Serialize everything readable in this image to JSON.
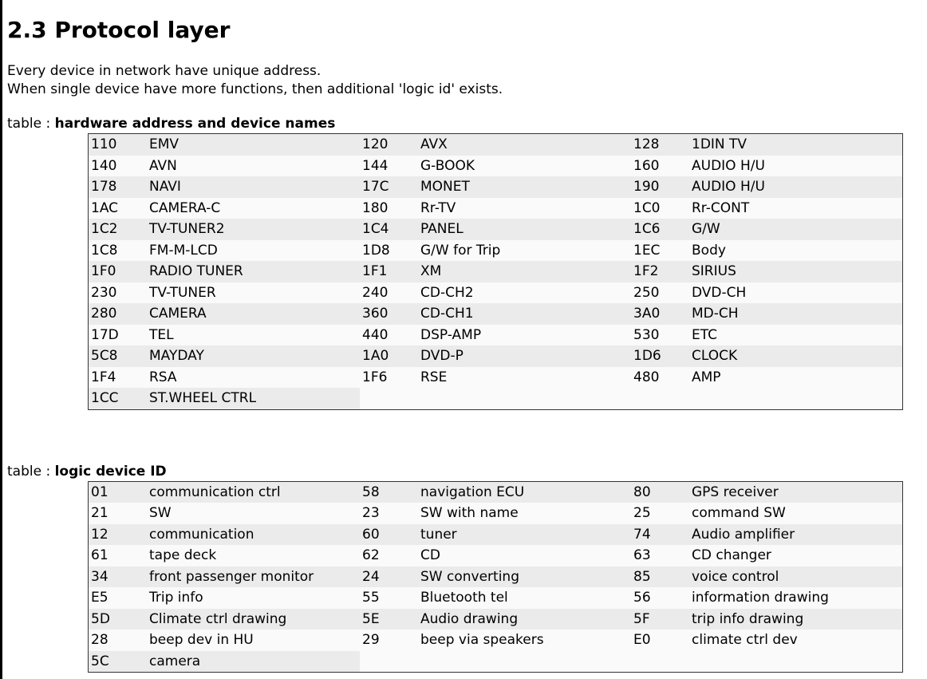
{
  "heading": "2.3 Protocol layer",
  "paragraphs": [
    "Every device in network have unique address.",
    "When single device have more functions, then additional 'logic id' exists."
  ],
  "tables": [
    {
      "label": "table :",
      "title": "hardware address and device names",
      "rows": [
        [
          "110",
          "EMV",
          "120",
          "AVX",
          "128",
          "1DIN TV"
        ],
        [
          "140",
          "AVN",
          "144",
          "G-BOOK",
          "160",
          "AUDIO H/U"
        ],
        [
          "178",
          "NAVI",
          "17C",
          "MONET",
          "190",
          "AUDIO H/U"
        ],
        [
          "1AC",
          "CAMERA-C",
          "180",
          "Rr-TV",
          "1C0",
          "Rr-CONT"
        ],
        [
          "1C2",
          "TV-TUNER2",
          "1C4",
          "PANEL",
          "1C6",
          "G/W"
        ],
        [
          "1C8",
          "FM-M-LCD",
          "1D8",
          "G/W for Trip",
          "1EC",
          "Body"
        ],
        [
          "1F0",
          "RADIO TUNER",
          "1F1",
          "XM",
          "1F2",
          "SIRIUS"
        ],
        [
          "230",
          "TV-TUNER",
          "240",
          "CD-CH2",
          "250",
          "DVD-CH"
        ],
        [
          "280",
          "CAMERA",
          "360",
          "CD-CH1",
          "3A0",
          "MD-CH"
        ],
        [
          "17D",
          "TEL",
          "440",
          "DSP-AMP",
          "530",
          "ETC"
        ],
        [
          "5C8",
          "MAYDAY",
          "1A0",
          "DVD-P",
          "1D6",
          "CLOCK"
        ],
        [
          "1F4",
          "RSA",
          "1F6",
          "RSE",
          "480",
          "AMP"
        ],
        [
          "1CC",
          "ST.WHEEL CTRL"
        ]
      ]
    },
    {
      "label": "table :",
      "title": "logic device ID",
      "rows": [
        [
          "01",
          "communication ctrl",
          "58",
          "navigation ECU",
          "80",
          "GPS receiver"
        ],
        [
          "21",
          "SW",
          "23",
          "SW with name",
          "25",
          "command SW"
        ],
        [
          "12",
          "communication",
          "60",
          "tuner",
          "74",
          "Audio amplifier"
        ],
        [
          "61",
          "tape deck",
          "62",
          "CD",
          "63",
          "CD changer"
        ],
        [
          "34",
          "front passenger monitor",
          "24",
          "SW converting",
          "85",
          "voice control"
        ],
        [
          "E5",
          "Trip info",
          "55",
          "Bluetooth tel",
          "56",
          "information drawing"
        ],
        [
          "5D",
          "Climate ctrl drawing",
          "5E",
          "Audio drawing",
          "5F",
          "trip info drawing"
        ],
        [
          "28",
          "beep dev in HU",
          "29",
          "beep via speakers",
          "E0",
          "climate ctrl dev"
        ],
        [
          "5C",
          "camera"
        ]
      ]
    }
  ]
}
